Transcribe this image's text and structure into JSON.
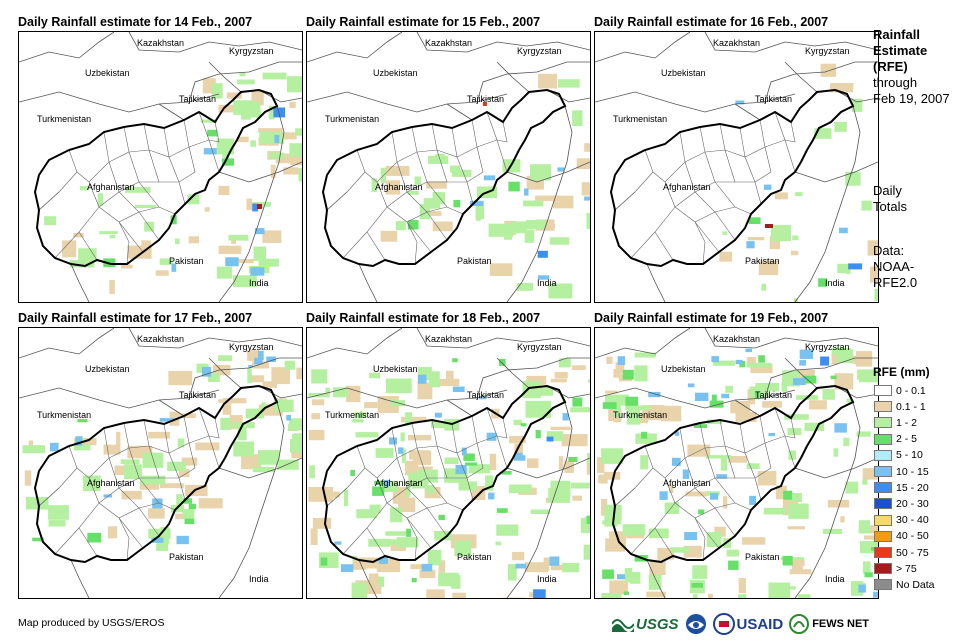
{
  "panels": [
    {
      "title": "Daily Rainfall estimate for 14 Feb., 2007"
    },
    {
      "title": "Daily Rainfall estimate for 15 Feb., 2007"
    },
    {
      "title": "Daily Rainfall estimate for 16 Feb., 2007"
    },
    {
      "title": "Daily Rainfall estimate for 17 Feb., 2007"
    },
    {
      "title": "Daily Rainfall estimate for 18 Feb., 2007"
    },
    {
      "title": "Daily Rainfall estimate for 19 Feb., 2007"
    }
  ],
  "countries": {
    "kazakhstan": "Kazakhstan",
    "kyrgyzstan": "Kyrgyzstan",
    "uzbekistan": "Uzbekistan",
    "tajikistan": "Tajikistan",
    "turkmenistan": "Turkmenistan",
    "afghanistan": "Afghanistan",
    "pakistan": "Pakistan",
    "india": "India"
  },
  "side": {
    "title_line1": "Rainfall",
    "title_line2": "Estimate",
    "title_line3": "(RFE)",
    "through": "through",
    "date": "Feb 19, 2007",
    "daily": "Daily",
    "totals": "Totals",
    "data_label": "Data:",
    "source1": "NOAA-",
    "source2": "RFE2.0"
  },
  "legend": {
    "title": "RFE (mm)",
    "items": [
      {
        "label": "0 - 0.1",
        "color": "#ffffff"
      },
      {
        "label": "0.1 - 1",
        "color": "#e8d3aa"
      },
      {
        "label": "1 - 2",
        "color": "#b4f0a0"
      },
      {
        "label": "2 - 5",
        "color": "#66e066"
      },
      {
        "label": "5 - 10",
        "color": "#b0ecf7"
      },
      {
        "label": "10 - 15",
        "color": "#78c2f2"
      },
      {
        "label": "15 - 20",
        "color": "#3c8ef0"
      },
      {
        "label": "20 - 30",
        "color": "#1d4ed8"
      },
      {
        "label": "30 - 40",
        "color": "#f7d86a"
      },
      {
        "label": "40 - 50",
        "color": "#f39a1a"
      },
      {
        "label": "50 - 75",
        "color": "#e33b1c"
      },
      {
        "label": "> 75",
        "color": "#a51c1c"
      },
      {
        "label": "No Data",
        "color": "#8c8c8c"
      }
    ]
  },
  "footer": {
    "credit": "Map produced by USGS/EROS"
  },
  "logos": {
    "usgs": "USGS",
    "usaid": "USAID",
    "fews": "FEWS NET"
  }
}
